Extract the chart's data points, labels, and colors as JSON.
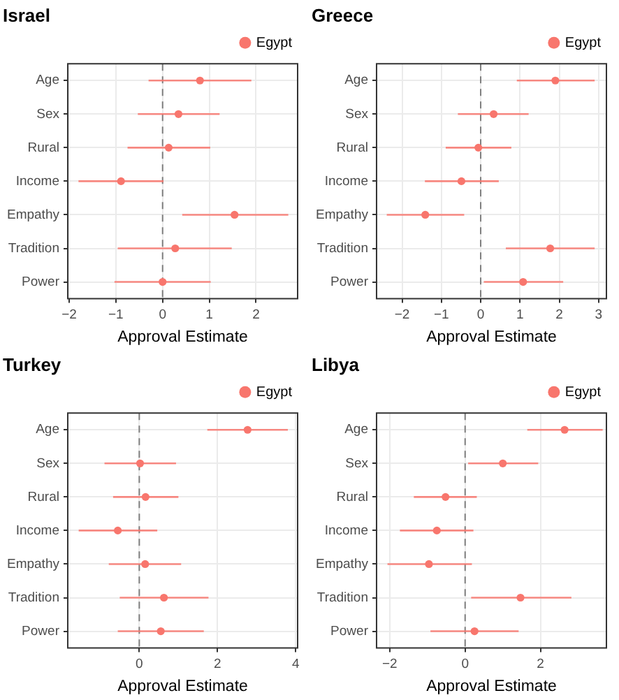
{
  "chart_data": [
    {
      "type": "scatter",
      "orientation": "horizontal",
      "title": "Israel",
      "xlabel": "Approval Estimate",
      "categories": [
        "Age",
        "Sex",
        "Rural",
        "Income",
        "Empathy",
        "Tradition",
        "Power"
      ],
      "marker": "circle",
      "grid": true,
      "legend": "top right",
      "xlim": [
        -2.03,
        2.89
      ],
      "xticks": [
        -2,
        -1,
        0,
        1,
        2
      ],
      "ref_lines": [
        {
          "axis": "x",
          "value": 0,
          "line_style": "dashed",
          "color": "#7f7f7f"
        }
      ],
      "series": [
        {
          "name": "Egypt",
          "color": "#f8766d",
          "values": [
            0.8,
            0.34,
            0.13,
            -0.89,
            1.54,
            0.27,
            0
          ],
          "errors": [
            [
              -0.3,
              1.9
            ],
            [
              -0.53,
              1.22
            ],
            [
              -0.75,
              1.02
            ],
            [
              -1.8,
              0.02
            ],
            [
              0.42,
              2.69
            ],
            [
              -0.96,
              1.48
            ],
            [
              -1.03,
              1.03
            ]
          ]
        }
      ]
    },
    {
      "type": "scatter",
      "orientation": "horizontal",
      "title": "Greece",
      "xlabel": "Approval Estimate",
      "categories": [
        "Age",
        "Sex",
        "Rural",
        "Income",
        "Empathy",
        "Tradition",
        "Power"
      ],
      "marker": "circle",
      "grid": true,
      "legend": "top right",
      "xlim": [
        -2.65,
        3.2
      ],
      "xticks": [
        -2,
        -1,
        0,
        1,
        2,
        3
      ],
      "ref_lines": [
        {
          "axis": "x",
          "value": 0,
          "line_style": "dashed",
          "color": "#7f7f7f"
        }
      ],
      "series": [
        {
          "name": "Egypt",
          "color": "#f8766d",
          "values": [
            1.9,
            0.33,
            -0.06,
            -0.49,
            -1.41,
            1.77,
            1.08
          ],
          "errors": [
            [
              0.92,
              2.9
            ],
            [
              -0.58,
              1.22
            ],
            [
              -0.89,
              0.78
            ],
            [
              -1.42,
              0.46
            ],
            [
              -2.39,
              -0.42
            ],
            [
              0.64,
              2.9
            ],
            [
              0.08,
              2.1
            ]
          ]
        }
      ]
    },
    {
      "type": "scatter",
      "orientation": "horizontal",
      "title": "Turkey",
      "xlabel": "Approval Estimate",
      "categories": [
        "Age",
        "Sex",
        "Rural",
        "Income",
        "Empathy",
        "Tradition",
        "Power"
      ],
      "marker": "circle",
      "grid": true,
      "legend": "top right",
      "xlim": [
        -1.83,
        4.05
      ],
      "xticks": [
        0,
        2,
        4
      ],
      "ref_lines": [
        {
          "axis": "x",
          "value": 0,
          "line_style": "dashed",
          "color": "#7f7f7f"
        }
      ],
      "series": [
        {
          "name": "Egypt",
          "color": "#f8766d",
          "values": [
            2.77,
            0.02,
            0.16,
            -0.55,
            0.15,
            0.63,
            0.55
          ],
          "errors": [
            [
              1.74,
              3.8
            ],
            [
              -0.89,
              0.94
            ],
            [
              -0.67,
              1.0
            ],
            [
              -1.55,
              0.46
            ],
            [
              -0.78,
              1.07
            ],
            [
              -0.5,
              1.77
            ],
            [
              -0.55,
              1.65
            ]
          ]
        }
      ]
    },
    {
      "type": "scatter",
      "orientation": "horizontal",
      "title": "Libya",
      "xlabel": "Approval Estimate",
      "categories": [
        "Age",
        "Sex",
        "Rural",
        "Income",
        "Empathy",
        "Tradition",
        "Power"
      ],
      "marker": "circle",
      "grid": true,
      "legend": "top right",
      "xlim": [
        -2.35,
        3.75
      ],
      "xticks": [
        -2,
        0,
        2
      ],
      "ref_lines": [
        {
          "axis": "x",
          "value": 0,
          "line_style": "dashed",
          "color": "#7f7f7f"
        }
      ],
      "series": [
        {
          "name": "Egypt",
          "color": "#f8766d",
          "values": [
            2.64,
            1.0,
            -0.52,
            -0.75,
            -0.96,
            1.47,
            0.25
          ],
          "errors": [
            [
              1.65,
              3.65
            ],
            [
              0.08,
              1.94
            ],
            [
              -1.36,
              0.31
            ],
            [
              -1.73,
              0.22
            ],
            [
              -2.06,
              0.18
            ],
            [
              0.16,
              2.82
            ],
            [
              -0.92,
              1.42
            ]
          ]
        }
      ]
    }
  ]
}
